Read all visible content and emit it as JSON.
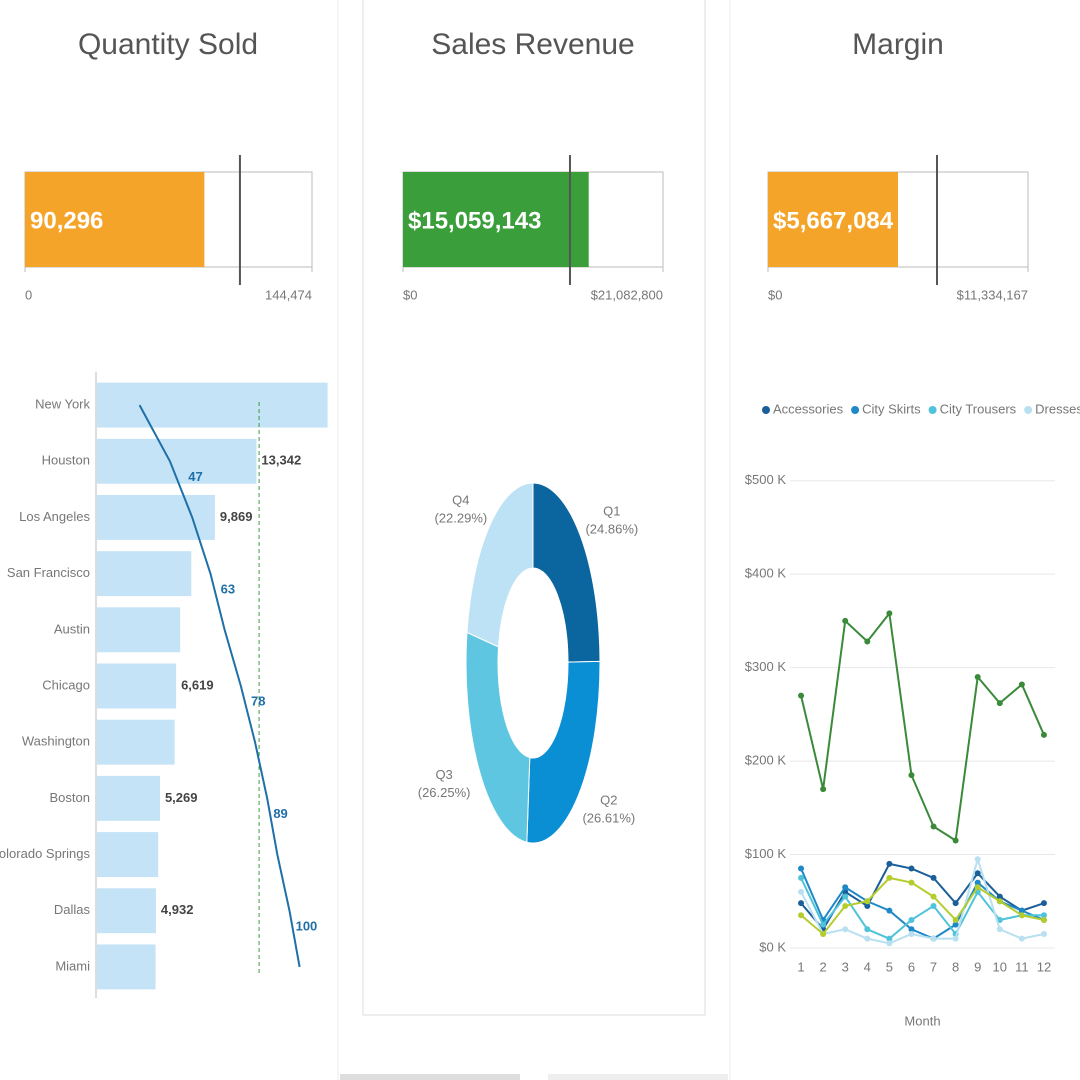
{
  "chart_data": [
    {
      "type": "bullet",
      "title": "Quantity Sold",
      "value": 90296,
      "value_label": "90,296",
      "target": 108200,
      "xlim": [
        0,
        144474
      ],
      "xticks": [
        0,
        {
          "value": 144474,
          "label": "144,474"
        }
      ],
      "color": "#f5a42a"
    },
    {
      "type": "bullet",
      "title": "Sales Revenue",
      "value": 15059143,
      "value_label": "$15,059,143",
      "target": 13540000,
      "xlim": [
        0,
        21082800
      ],
      "xticks": [
        {
          "value": 0,
          "label": "$0"
        },
        {
          "value": 21082800,
          "label": "$21,082,800"
        }
      ],
      "color": "#3a9e3a"
    },
    {
      "type": "bullet",
      "title": "Margin",
      "value": 5667084,
      "value_label": "$5,667,084",
      "target": 7367000,
      "xlim": [
        0,
        11334167
      ],
      "xticks": [
        {
          "value": 0,
          "label": "$0"
        },
        {
          "value": 11334167,
          "label": "$11,334,167"
        }
      ],
      "color": "#f5a42a"
    },
    {
      "type": "bar",
      "orientation": "horizontal",
      "categories": [
        "New York",
        "Houston",
        "Los Angeles",
        "San Francisco",
        "Austin",
        "Chicago",
        "Washington",
        "Boston",
        "Colorado Springs",
        "Dallas",
        "Miami"
      ],
      "values": [
        19300,
        13342,
        9869,
        7890,
        6960,
        6619,
        6500,
        5269,
        5120,
        4932,
        4900
      ],
      "value_labels": [
        null,
        "13,342",
        "9,869",
        null,
        null,
        "6,619",
        null,
        "5,269",
        null,
        "4,932",
        null
      ],
      "color": "#c5e3f6",
      "xlim": [
        0,
        19500
      ],
      "line": {
        "values": [
          21,
          36,
          47,
          56,
          63,
          71,
          78,
          84,
          89,
          95,
          100
        ],
        "value_labels": [
          null,
          null,
          "47",
          null,
          "63",
          null,
          "78",
          null,
          "89",
          null,
          "100"
        ],
        "color": "#1f6fa8"
      },
      "x2lim": [
        0,
        115
      ],
      "reference": 80,
      "reference_color": "#3a9e3a"
    },
    {
      "type": "pie",
      "donut": true,
      "categories": [
        "Q1",
        "Q2",
        "Q3",
        "Q4"
      ],
      "values": [
        24.86,
        26.61,
        26.25,
        22.29
      ],
      "value_labels": [
        "(24.86%)",
        "(26.61%)",
        "(26.25%)",
        "(22.29%)"
      ],
      "colors": [
        "#0b659e",
        "#0a8fd4",
        "#5ec6e0",
        "#bde2f5"
      ]
    },
    {
      "type": "line",
      "x": [
        1,
        2,
        3,
        4,
        5,
        6,
        7,
        8,
        9,
        10,
        11,
        12
      ],
      "xticks": [
        1,
        2,
        3,
        4,
        5,
        6,
        7,
        8,
        9,
        10,
        11,
        12
      ],
      "xlim": [
        0.5,
        12.5
      ],
      "xlabel": "Month",
      "ylim": [
        0,
        520000
      ],
      "yticks": [
        {
          "value": 0,
          "label": "$0 K"
        },
        {
          "value": 100000,
          "label": "$100 K"
        },
        {
          "value": 200000,
          "label": "$200 K"
        },
        {
          "value": 300000,
          "label": "$300 K"
        },
        {
          "value": 400000,
          "label": "$400 K"
        },
        {
          "value": 500000,
          "label": "$500 K"
        }
      ],
      "grid": true,
      "series": [
        {
          "color": "#3a8a3a",
          "values": [
            270000,
            170000,
            350000,
            328000,
            358000,
            185000,
            130000,
            115000,
            290000,
            262000,
            282000,
            228000
          ]
        },
        {
          "name": "Accessories",
          "color": "#1a5f9a",
          "values": [
            48000,
            20000,
            60000,
            45000,
            90000,
            85000,
            75000,
            48000,
            80000,
            55000,
            40000,
            48000
          ]
        },
        {
          "name": "City Skirts",
          "color": "#1e88c8",
          "values": [
            85000,
            30000,
            65000,
            50000,
            40000,
            20000,
            10000,
            25000,
            70000,
            50000,
            40000,
            30000
          ]
        },
        {
          "name": "City Trousers",
          "color": "#4fc3d9",
          "values": [
            75000,
            25000,
            55000,
            20000,
            10000,
            30000,
            45000,
            15000,
            60000,
            30000,
            35000,
            35000
          ]
        },
        {
          "name": "Dresses ...",
          "color": "#b8e0f0",
          "values": [
            60000,
            15000,
            20000,
            10000,
            5000,
            15000,
            10000,
            10000,
            95000,
            20000,
            10000,
            15000
          ]
        },
        {
          "color": "#b5cc2e",
          "values": [
            35000,
            15000,
            45000,
            50000,
            75000,
            70000,
            55000,
            30000,
            65000,
            50000,
            35000,
            30000
          ]
        }
      ]
    }
  ]
}
